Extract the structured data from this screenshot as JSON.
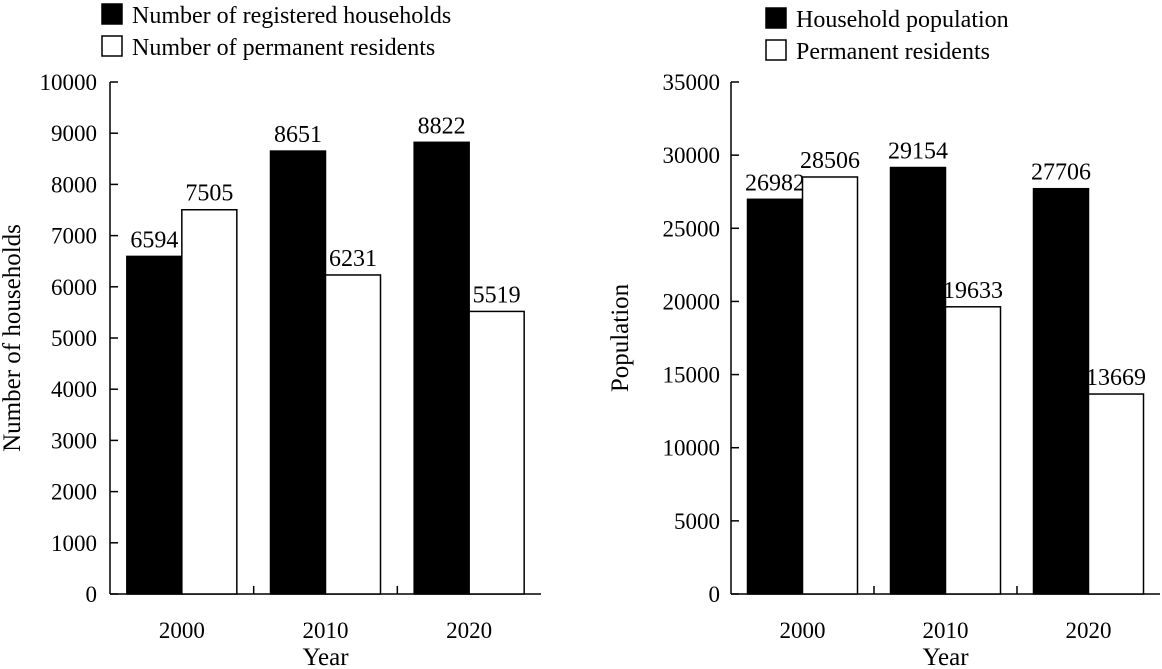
{
  "chart_data": [
    {
      "type": "bar",
      "categories": [
        "2000",
        "2010",
        "2020"
      ],
      "series": [
        {
          "name": "Number of registered households",
          "values": [
            6594,
            8651,
            8822
          ],
          "color": "#000000"
        },
        {
          "name": "Number of permanent residents",
          "values": [
            7505,
            6231,
            5519
          ],
          "color": "#ffffff"
        }
      ],
      "xlabel": "Year",
      "ylabel": "Number of households",
      "ylim": [
        0,
        10000
      ],
      "yticks": [
        0,
        1000,
        2000,
        3000,
        4000,
        5000,
        6000,
        7000,
        8000,
        9000,
        10000
      ],
      "grid": false,
      "legend": "top"
    },
    {
      "type": "bar",
      "categories": [
        "2000",
        "2010",
        "2020"
      ],
      "series": [
        {
          "name": "Household population",
          "values": [
            26982,
            29154,
            27706
          ],
          "color": "#000000"
        },
        {
          "name": "Permanent residents",
          "values": [
            28506,
            19633,
            13669
          ],
          "color": "#ffffff"
        }
      ],
      "xlabel": "Year",
      "ylabel": "Population",
      "ylim": [
        0,
        35000
      ],
      "yticks": [
        0,
        5000,
        10000,
        15000,
        20000,
        25000,
        30000,
        35000
      ],
      "grid": false,
      "legend": "top"
    }
  ]
}
